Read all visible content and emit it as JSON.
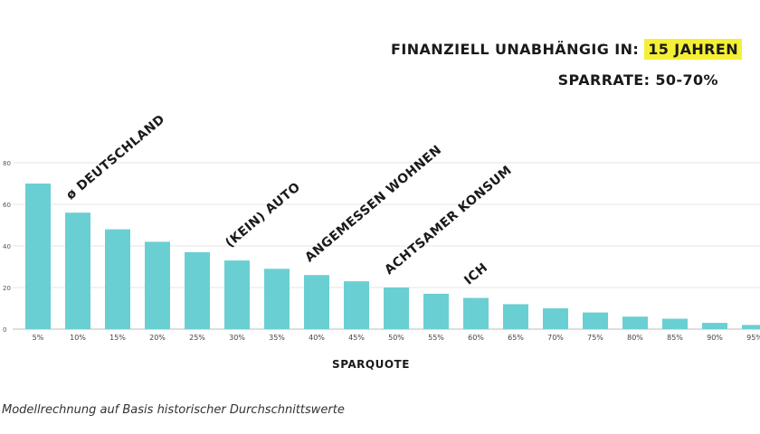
{
  "header": {
    "headline_prefix": "FINANZIELL UNABHÄNGIG IN:",
    "headline_highlight": "15 JAHREN",
    "subline": "SPARRATE: 50-70%"
  },
  "footnote": "Modellrechnung auf Basis historischer Durchschnittswerte",
  "colors": {
    "bar": "#6acfd3",
    "grid": "#e4e4e4",
    "text": "#1a1a1a",
    "highlight": "#f5f035"
  },
  "chart_data": {
    "type": "bar",
    "xlabel": "SPARQUOTE",
    "ylabel": "",
    "ylim": [
      0,
      80
    ],
    "yticks": [
      0,
      20,
      40,
      60,
      80
    ],
    "ytick_labels": [
      "0",
      "20",
      "40",
      "60",
      "80"
    ],
    "grid": true,
    "categories": [
      "5%",
      "10%",
      "15%",
      "20%",
      "25%",
      "30%",
      "35%",
      "40%",
      "45%",
      "50%",
      "55%",
      "60%",
      "65%",
      "70%",
      "75%",
      "80%",
      "85%",
      "90%",
      "95%"
    ],
    "values": [
      70,
      56,
      48,
      42,
      37,
      33,
      29,
      26,
      23,
      20,
      17,
      15,
      12,
      10,
      8,
      6,
      5,
      3,
      2
    ],
    "annotations": [
      {
        "text": "ø DEUTSCHLAND",
        "category": "10%"
      },
      {
        "text": "(KEIN) AUTO",
        "category": "30%"
      },
      {
        "text": "ANGEMESSEN WOHNEN",
        "category": "40%"
      },
      {
        "text": "ACHTSAMER KONSUM",
        "category": "50%"
      },
      {
        "text": "ICH",
        "category": "60%"
      }
    ]
  }
}
